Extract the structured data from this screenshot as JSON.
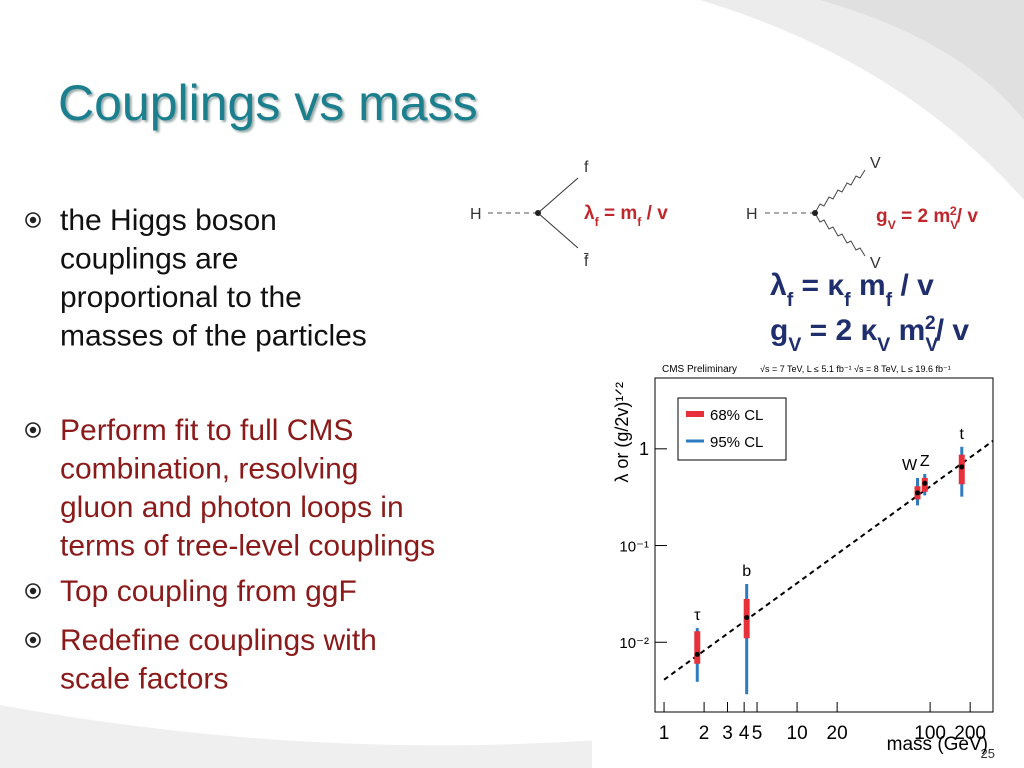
{
  "title": "Couplings vs mass",
  "bullets": [
    {
      "color": "#111111",
      "lines": [
        "the Higgs boson",
        "couplings are",
        "proportional to the",
        "masses of the particles"
      ]
    },
    {
      "color": "#8b1a1a",
      "lines": [
        "Perform fit to full CMS",
        "combination, resolving",
        "gluon and photon loops in",
        "terms of tree-level couplings"
      ]
    },
    {
      "color": "#8b1a1a",
      "lines": [
        "Top coupling from ggF"
      ]
    },
    {
      "color": "#8b1a1a",
      "lines": [
        "Redefine couplings with",
        "scale factors"
      ]
    }
  ],
  "fermion_diagram": {
    "initial": "H",
    "out_1": "f",
    "out_2": "f̄",
    "coupling": [
      {
        "text": "λ"
      },
      {
        "text": "f",
        "style": "sub"
      },
      {
        "text": " = m"
      },
      {
        "text": "f",
        "style": "sub"
      },
      {
        "text": " / v"
      }
    ]
  },
  "boson_diagram": {
    "initial": "H",
    "out_1": "V",
    "out_2": "V",
    "coupling": [
      {
        "text": "g"
      },
      {
        "text": "V",
        "style": "sub"
      },
      {
        "text": " = 2 m"
      },
      {
        "text": "V",
        "style": "sub"
      },
      {
        "text": "2",
        "style": "sup"
      },
      {
        "text": "/ v"
      }
    ]
  },
  "formulas": [
    [
      {
        "text": "λ"
      },
      {
        "text": "f",
        "style": "sub"
      },
      {
        "text": " = κ"
      },
      {
        "text": "f",
        "style": "sub"
      },
      {
        "text": " m"
      },
      {
        "text": "f",
        "style": "sub"
      },
      {
        "text": " / v"
      }
    ],
    [
      {
        "text": "g"
      },
      {
        "text": "V",
        "style": "sub"
      },
      {
        "text": " = 2 κ"
      },
      {
        "text": "V",
        "style": "sub"
      },
      {
        "text": " m"
      },
      {
        "text": "V",
        "style": "sub"
      },
      {
        "text": "2",
        "style": "sup"
      },
      {
        "text": "/ v"
      }
    ]
  ],
  "chart_data": {
    "type": "scatter",
    "header_left": "CMS Preliminary",
    "header_right": "√s = 7 TeV, L ≤ 5.1 fb⁻¹  √s = 8 TeV, L ≤ 19.6 fb⁻¹",
    "x_label": "mass (GeV)",
    "y_label": "λ or (g/2v)¹ᐟ²",
    "xscale": "log",
    "yscale": "log",
    "xlim": [
      0.855,
      297
    ],
    "ylim": [
      0.0019,
      5.4
    ],
    "xticks": [
      1,
      2,
      3,
      4,
      5,
      10,
      20,
      100,
      200
    ],
    "yticks": [
      {
        "value": 0.01,
        "label": "10⁻²"
      },
      {
        "value": 0.1,
        "label": "10⁻¹"
      },
      1
    ],
    "legend": [
      {
        "name": "68% CL",
        "color": "#e8303a"
      },
      {
        "name": "95% CL",
        "color": "#2e7bc0"
      }
    ],
    "points": [
      {
        "label": "τ",
        "x": 1.777,
        "value": 0.0075,
        "ci68": [
          0.006,
          0.013
        ],
        "ci95": [
          0.0039,
          0.014
        ]
      },
      {
        "label": "b",
        "x": 4.18,
        "value": 0.018,
        "ci68": [
          0.011,
          0.028
        ],
        "ci95": [
          0.0029,
          0.04
        ]
      },
      {
        "label": "W",
        "x": 80.4,
        "value": 0.35,
        "ci68": [
          0.3,
          0.41
        ],
        "ci95": [
          0.26,
          0.5
        ]
      },
      {
        "label": "Z",
        "x": 91.2,
        "value": 0.44,
        "ci68": [
          0.36,
          0.5
        ],
        "ci95": [
          0.33,
          0.55
        ]
      },
      {
        "label": "t",
        "x": 173,
        "value": 0.65,
        "ci68": [
          0.43,
          0.87
        ],
        "ci95": [
          0.32,
          1.05
        ]
      }
    ],
    "reference_line": {
      "x": [
        1,
        297
      ],
      "values": [
        0.0041,
        1.21
      ]
    }
  },
  "page_number": "25"
}
